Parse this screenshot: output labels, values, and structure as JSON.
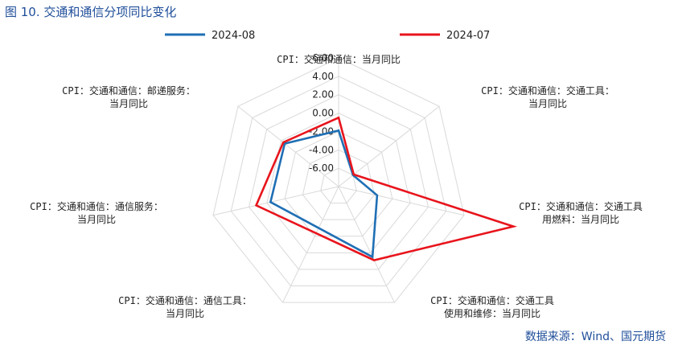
{
  "figure_title": "图 10.  交通和通信分项同比变化",
  "source": "数据来源：Wind、国元期货",
  "chart_data": {
    "type": "radar",
    "title": "",
    "axes": [
      [
        "CPI：交通和通信：当月同比"
      ],
      [
        "CPI：交通和通信：交通工具：",
        "当月同比"
      ],
      [
        "CPI：交通和通信：交通工具",
        "用燃料：当月同比"
      ],
      [
        "CPI：交通和通信：交通工具",
        "使用和维修：当月同比"
      ],
      [
        "CPI：交通和通信：通信工具：",
        "当月同比"
      ],
      [
        "CPI：交通和通信：通信服务：",
        "当月同比"
      ],
      [
        "CPI：交通和通信：邮递服务：",
        "当月同比"
      ]
    ],
    "radial_ticks": [
      "6.00",
      "4.00",
      "2.00",
      "0.00",
      "-2.00",
      "-4.00",
      "-6.00"
    ],
    "rmin": -8,
    "rmax": 6,
    "grid": true,
    "legend_position": "top",
    "series": [
      {
        "name": "2024-08",
        "color": "#1f6fb4",
        "values": [
          -1.9,
          -6.0,
          -3.7,
          0.5,
          null,
          -0.4,
          -0.5
        ]
      },
      {
        "name": "2024-07",
        "color": "#e8141c",
        "values": [
          -0.5,
          -5.9,
          11.5,
          0.9,
          null,
          1.2,
          -0.3
        ]
      }
    ]
  }
}
